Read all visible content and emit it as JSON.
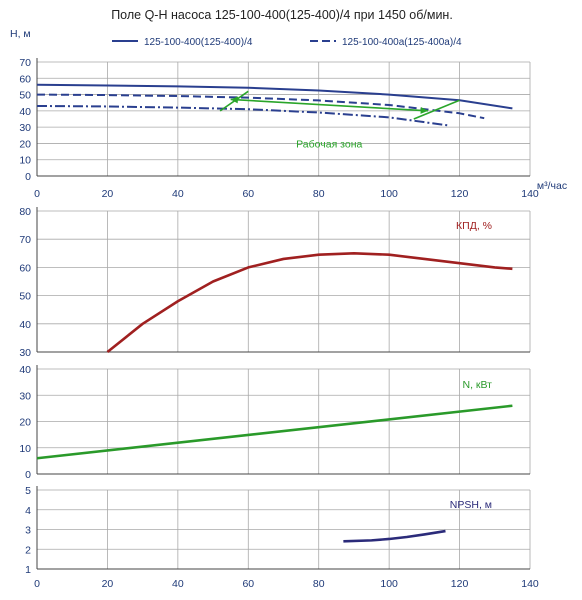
{
  "title": "Поле Q-Н насоса 125-100-400(125-400)/4 при 1450 об/мин.",
  "x_axis_label": "м³/час",
  "colors": {
    "pump_main": "#2a3f8f",
    "efficiency": "#a02020",
    "power": "#2a9a2a",
    "npsh": "#2b2b7a",
    "work_zone": "#2aa52a",
    "grid": "#a9a9a9",
    "tick": "#1f3a78"
  },
  "chart_data": [
    {
      "id": "head",
      "type": "line",
      "ylabel": "Н, м",
      "xlim": [
        0,
        140
      ],
      "ylim": [
        0,
        70
      ],
      "x_ticks": [
        0,
        20,
        40,
        60,
        80,
        100,
        120,
        140
      ],
      "y_ticks": [
        0,
        10,
        20,
        30,
        40,
        50,
        60,
        70
      ],
      "legend": "top",
      "series": [
        {
          "name": "125-100-400(125-400)/4",
          "style": "solid",
          "x": [
            0,
            20,
            40,
            60,
            80,
            100,
            120,
            135
          ],
          "y": [
            56,
            55.6,
            55,
            54.2,
            52.5,
            50,
            46.5,
            41.5
          ]
        },
        {
          "name": "125-100-400а(125-400а)/4",
          "style": "dashed",
          "x": [
            0,
            20,
            40,
            60,
            80,
            100,
            120,
            127
          ],
          "y": [
            50,
            49.7,
            49.1,
            48.1,
            46.4,
            43.6,
            38.5,
            35.5
          ]
        },
        {
          "name": "",
          "style": "dashdot",
          "x": [
            0,
            20,
            40,
            60,
            80,
            100,
            117
          ],
          "y": [
            43,
            42.7,
            42,
            41,
            39,
            36,
            31
          ]
        }
      ],
      "work_zone": {
        "label": "Рабочая зона",
        "points": [
          [
            52,
            40
          ],
          [
            60,
            52
          ],
          [
            120,
            46.5
          ],
          [
            107,
            35
          ],
          [
            55,
            47
          ],
          [
            111,
            40
          ]
        ]
      }
    },
    {
      "id": "efficiency",
      "type": "line",
      "ylabel": "КПД, %",
      "xlim": [
        0,
        140
      ],
      "ylim": [
        30,
        80
      ],
      "y_ticks": [
        30,
        40,
        50,
        60,
        70,
        80
      ],
      "series": [
        {
          "name": "",
          "x": [
            20,
            30,
            40,
            50,
            60,
            70,
            80,
            90,
            100,
            110,
            120,
            130,
            135
          ],
          "y": [
            30,
            40,
            48,
            55,
            60,
            63,
            64.5,
            65,
            64.5,
            63,
            61.5,
            60,
            59.5
          ]
        }
      ]
    },
    {
      "id": "power",
      "type": "line",
      "ylabel": "N, кВт",
      "xlim": [
        0,
        140
      ],
      "ylim": [
        0,
        40
      ],
      "y_ticks": [
        0,
        10,
        20,
        30,
        40
      ],
      "series": [
        {
          "name": "",
          "x": [
            0,
            135
          ],
          "y": [
            6,
            26
          ]
        }
      ]
    },
    {
      "id": "npsh",
      "type": "line",
      "ylabel": "NPSH, м",
      "xlim": [
        0,
        140
      ],
      "ylim": [
        1,
        5
      ],
      "x_ticks": [
        0,
        20,
        40,
        60,
        80,
        100,
        120,
        140
      ],
      "y_ticks": [
        1,
        2,
        3,
        4,
        5
      ],
      "series": [
        {
          "name": "",
          "x": [
            87,
            95,
            100,
            105,
            110,
            116
          ],
          "y": [
            2.4,
            2.45,
            2.52,
            2.62,
            2.75,
            2.92
          ]
        }
      ]
    }
  ]
}
